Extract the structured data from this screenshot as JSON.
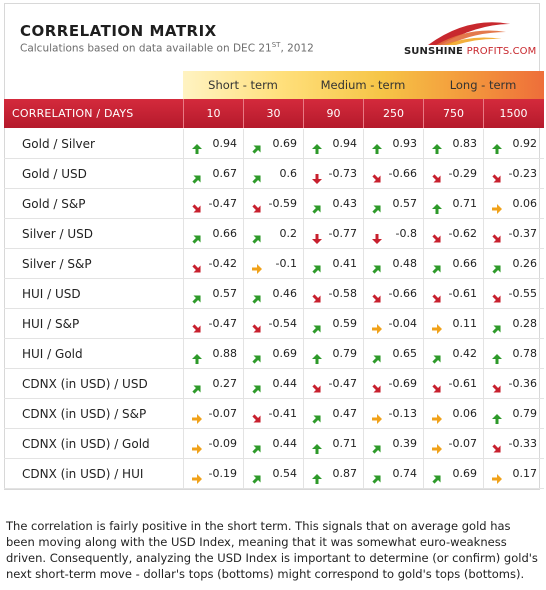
{
  "header": {
    "title": "CORRELATION MATRIX",
    "subtitle_prefix": "Calculations based on data available on DEC 21",
    "subtitle_sup": "ST",
    "subtitle_suffix": ", 2012"
  },
  "logo": {
    "text_main": "SUNSHINE",
    "text_accent": "PROFITS.COM",
    "icon": "sunshine-logo-icon"
  },
  "terms": [
    {
      "label": "Short - term"
    },
    {
      "label": "Medium - term"
    },
    {
      "label": "Long - term"
    }
  ],
  "table": {
    "corner_label": "CORRELATION / DAYS",
    "days": [
      "10",
      "30",
      "90",
      "250",
      "750",
      "1500"
    ],
    "arrow_colors": {
      "up": "#2e9a2a",
      "diag-up": "#2e9a2a",
      "down": "#c8202e",
      "diag-down": "#c8202e",
      "right": "#f0a21a"
    },
    "rows": [
      {
        "label": "Gold / Silver",
        "cells": [
          {
            "v": "0.94",
            "d": "up"
          },
          {
            "v": "0.69",
            "d": "diag-up"
          },
          {
            "v": "0.94",
            "d": "up"
          },
          {
            "v": "0.93",
            "d": "up"
          },
          {
            "v": "0.83",
            "d": "up"
          },
          {
            "v": "0.92",
            "d": "up"
          }
        ]
      },
      {
        "label": "Gold / USD",
        "cells": [
          {
            "v": "0.67",
            "d": "diag-up"
          },
          {
            "v": "0.6",
            "d": "diag-up"
          },
          {
            "v": "-0.73",
            "d": "down"
          },
          {
            "v": "-0.66",
            "d": "diag-down"
          },
          {
            "v": "-0.29",
            "d": "diag-down"
          },
          {
            "v": "-0.23",
            "d": "diag-down"
          }
        ]
      },
      {
        "label": "Gold / S&P",
        "cells": [
          {
            "v": "-0.47",
            "d": "diag-down"
          },
          {
            "v": "-0.59",
            "d": "diag-down"
          },
          {
            "v": "0.43",
            "d": "diag-up"
          },
          {
            "v": "0.57",
            "d": "diag-up"
          },
          {
            "v": "0.71",
            "d": "up"
          },
          {
            "v": "0.06",
            "d": "right"
          }
        ]
      },
      {
        "label": "Silver / USD",
        "cells": [
          {
            "v": "0.66",
            "d": "diag-up"
          },
          {
            "v": "0.2",
            "d": "diag-up"
          },
          {
            "v": "-0.77",
            "d": "down"
          },
          {
            "v": "-0.8",
            "d": "down"
          },
          {
            "v": "-0.62",
            "d": "diag-down"
          },
          {
            "v": "-0.37",
            "d": "diag-down"
          }
        ]
      },
      {
        "label": "Silver / S&P",
        "cells": [
          {
            "v": "-0.42",
            "d": "diag-down"
          },
          {
            "v": "-0.1",
            "d": "right"
          },
          {
            "v": "0.41",
            "d": "diag-up"
          },
          {
            "v": "0.48",
            "d": "diag-up"
          },
          {
            "v": "0.66",
            "d": "diag-up"
          },
          {
            "v": "0.26",
            "d": "diag-up"
          }
        ]
      },
      {
        "label": "HUI / USD",
        "cells": [
          {
            "v": "0.57",
            "d": "diag-up"
          },
          {
            "v": "0.46",
            "d": "diag-up"
          },
          {
            "v": "-0.58",
            "d": "diag-down"
          },
          {
            "v": "-0.66",
            "d": "diag-down"
          },
          {
            "v": "-0.61",
            "d": "diag-down"
          },
          {
            "v": "-0.55",
            "d": "diag-down"
          }
        ]
      },
      {
        "label": "HUI / S&P",
        "cells": [
          {
            "v": "-0.47",
            "d": "diag-down"
          },
          {
            "v": "-0.54",
            "d": "diag-down"
          },
          {
            "v": "0.59",
            "d": "diag-up"
          },
          {
            "v": "-0.04",
            "d": "right"
          },
          {
            "v": "0.11",
            "d": "right"
          },
          {
            "v": "0.28",
            "d": "diag-up"
          }
        ]
      },
      {
        "label": "HUI / Gold",
        "cells": [
          {
            "v": "0.88",
            "d": "up"
          },
          {
            "v": "0.69",
            "d": "diag-up"
          },
          {
            "v": "0.79",
            "d": "up"
          },
          {
            "v": "0.65",
            "d": "diag-up"
          },
          {
            "v": "0.42",
            "d": "diag-up"
          },
          {
            "v": "0.78",
            "d": "up"
          }
        ]
      },
      {
        "label": "CDNX (in USD) / USD",
        "cells": [
          {
            "v": "0.27",
            "d": "diag-up"
          },
          {
            "v": "0.44",
            "d": "diag-up"
          },
          {
            "v": "-0.47",
            "d": "diag-down"
          },
          {
            "v": "-0.69",
            "d": "diag-down"
          },
          {
            "v": "-0.61",
            "d": "diag-down"
          },
          {
            "v": "-0.36",
            "d": "diag-down"
          }
        ]
      },
      {
        "label": "CDNX (in USD) / S&P",
        "cells": [
          {
            "v": "-0.07",
            "d": "right"
          },
          {
            "v": "-0.41",
            "d": "diag-down"
          },
          {
            "v": "0.47",
            "d": "diag-up"
          },
          {
            "v": "-0.13",
            "d": "right"
          },
          {
            "v": "0.06",
            "d": "right"
          },
          {
            "v": "0.79",
            "d": "up"
          }
        ]
      },
      {
        "label": "CDNX (in USD) / Gold",
        "cells": [
          {
            "v": "-0.09",
            "d": "right"
          },
          {
            "v": "0.44",
            "d": "diag-up"
          },
          {
            "v": "0.71",
            "d": "up"
          },
          {
            "v": "0.39",
            "d": "diag-up"
          },
          {
            "v": "-0.07",
            "d": "right"
          },
          {
            "v": "-0.33",
            "d": "diag-down"
          }
        ]
      },
      {
        "label": "CDNX (in USD) / HUI",
        "cells": [
          {
            "v": "-0.19",
            "d": "right"
          },
          {
            "v": "0.54",
            "d": "diag-up"
          },
          {
            "v": "0.87",
            "d": "up"
          },
          {
            "v": "0.74",
            "d": "diag-up"
          },
          {
            "v": "0.69",
            "d": "diag-up"
          },
          {
            "v": "0.17",
            "d": "right"
          }
        ]
      }
    ]
  },
  "commentary": "The correlation is fairly positive in the short term. This signals that on average gold has been moving along with the USD Index, meaning that it was somewhat euro-weakness driven. Consequently, analyzing the USD Index is important to determine (or confirm) gold's next short-term move - dollar's tops (bottoms) might correspond to gold's tops (bottoms)."
}
